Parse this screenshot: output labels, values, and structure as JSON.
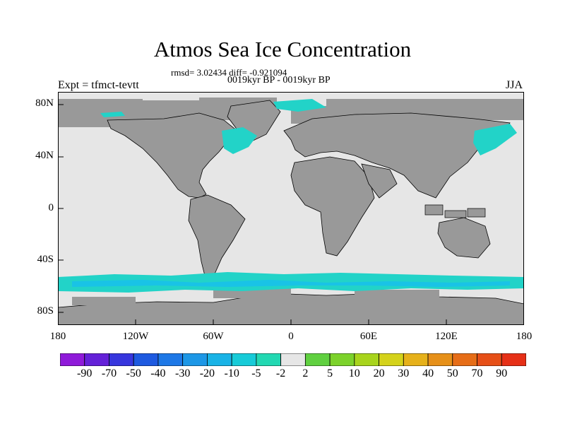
{
  "title": "Atmos Sea Ice Concentration",
  "stats_line": "rmsd= 3.02434 diff= -0.921094",
  "period_line": "0019kyr BP - 0019kyr BP",
  "left_label": "Expt = tfmct-tevtt",
  "right_label": "JJA",
  "lat_labels": [
    "80N",
    "40N",
    "0",
    "40S",
    "80S"
  ],
  "lon_labels": [
    "180",
    "120W",
    "60W",
    "0",
    "60E",
    "120E",
    "180"
  ],
  "colors": {
    "ocean": "#e6e6e6",
    "land": "#999999",
    "coast": "#000000",
    "ice_light": "#22d3c8",
    "ice_mid": "#19c3e6",
    "ice_dark": "#14b0cc",
    "positive": "#2ed06e"
  },
  "colorbar": {
    "labels": [
      "-90",
      "-70",
      "-50",
      "-40",
      "-30",
      "-20",
      "-10",
      "-5",
      "-2",
      "2",
      "5",
      "10",
      "20",
      "30",
      "40",
      "50",
      "70",
      "90"
    ],
    "colors": [
      "#8f1ad9",
      "#6421d8",
      "#3736dd",
      "#1e5ae0",
      "#1e78e6",
      "#1d97e6",
      "#19b3e6",
      "#17cbd8",
      "#22d8b2",
      "#e6e6e6",
      "#60d040",
      "#7cd22b",
      "#a8d41c",
      "#d4d21a",
      "#e6b11a",
      "#e69019",
      "#e66d17",
      "#e64f17",
      "#e63017"
    ]
  }
}
